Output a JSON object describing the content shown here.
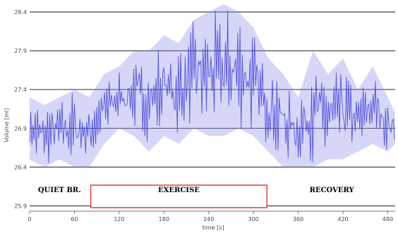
{
  "chart_data": {
    "type": "line",
    "title": "",
    "xlabel": "time [s]",
    "ylabel": "Volume [ml]",
    "xlim": [
      0,
      490
    ],
    "ylim": [
      25.85,
      28.5
    ],
    "x_ticks": [
      0,
      60,
      120,
      180,
      240,
      300,
      360,
      420,
      480
    ],
    "x_tick_labels": [
      "0",
      "60",
      "120",
      "180",
      "240",
      "300",
      "360",
      "420",
      "480"
    ],
    "y_ticks": [
      25.9,
      26.4,
      26.9,
      27.4,
      27.9,
      28.4
    ],
    "y_tick_labels": [
      "25.9",
      "26.4",
      "26.9",
      "27.4",
      "27.9",
      "28.4"
    ],
    "grid": "horizontal",
    "colors": {
      "series": "#3b3bd8",
      "series_fill": "#8a8aee",
      "grid": "#444444",
      "exercise_box": "#e04040"
    },
    "phases": [
      {
        "label": "QUIET BR.",
        "x_start": 0,
        "x_end": 80
      },
      {
        "label": "EXERCISE",
        "x_start": 80,
        "x_end": 320,
        "boxed": true
      },
      {
        "label": "RECOVERY",
        "x_start": 320,
        "x_end": 490
      }
    ],
    "series": [
      {
        "x": [
          0,
          20,
          40,
          60,
          80,
          100,
          120,
          140,
          160,
          180,
          200,
          220,
          240,
          260,
          280,
          300,
          320,
          340,
          360,
          380,
          400,
          420,
          440,
          460,
          480,
          490
        ],
        "upper": [
          27.3,
          27.2,
          27.3,
          27.4,
          27.3,
          27.6,
          27.7,
          27.9,
          27.9,
          28.1,
          28.0,
          28.3,
          28.4,
          28.5,
          28.4,
          28.2,
          27.8,
          27.6,
          27.3,
          27.9,
          27.6,
          27.8,
          27.4,
          27.7,
          27.3,
          27.1
        ],
        "lower": [
          26.5,
          26.4,
          26.5,
          26.4,
          26.4,
          26.7,
          26.9,
          26.8,
          26.6,
          26.8,
          26.7,
          26.9,
          26.8,
          26.8,
          26.9,
          26.8,
          26.6,
          26.4,
          26.4,
          26.4,
          26.5,
          26.5,
          26.6,
          26.7,
          26.6,
          26.7
        ]
      }
    ]
  }
}
